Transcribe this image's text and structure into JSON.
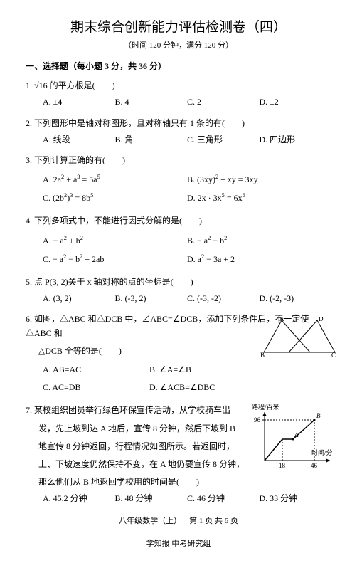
{
  "title": "期末综合创新能力评估检测卷（四）",
  "subtitle": "（时间 120 分钟，满分 120 分）",
  "section": "一、选择题（每小题 3 分，共 36 分）",
  "q1": {
    "stem_pre": "1.  ",
    "sqrt_val": "16",
    "stem_post": " 的平方根是(",
    "a": "A. ±4",
    "b": "B. 4",
    "c": "C. 2",
    "d": "D. ±2"
  },
  "q2": {
    "stem": "2.  下列图形中是轴对称图形，且对称轴只有 1 条的有(",
    "a": "A. 线段",
    "b": "B. 角",
    "c": "C. 三角形",
    "d": "D. 四边形"
  },
  "q3": {
    "stem": "3.  下列计算正确的有(",
    "a_html": "A.  2a<span class='sup'>2</span> + a<span class='sup'>3</span> = 5a<span class='sup'>5</span>",
    "b_html": "B.  (3xy)<span class='sup'>2</span> ÷ xy = 3xy",
    "c_html": "C.  (2b<span class='sup'>2</span>)<span class='sup'>3</span> = 8b<span class='sup'>5</span>",
    "d_html": "D.  2x · 3x<span class='sup'>5</span> = 6x<span class='sup'>6</span>"
  },
  "q4": {
    "stem": "4.  下列多项式中，不能进行因式分解的是(",
    "a_html": "A.  − a<span class='sup'>2</span> + b<span class='sup'>2</span>",
    "b_html": "B.  − a<span class='sup'>2</span> − b<span class='sup'>2</span>",
    "c_html": "C.  − a<span class='sup'>2</span> − b<span class='sup'>2</span> + 2ab",
    "d_html": "D.  a<span class='sup'>2</span> − 3a + 2"
  },
  "q5": {
    "stem": "5.  点 P(3, 2)关于 x 轴对称的点的坐标是(",
    "a": "A. (3, 2)",
    "b": "B. (-3, 2)",
    "c": "C. (-3, -2)",
    "d": "D. (-2, -3)"
  },
  "q6": {
    "line1": "6.  如图，△ABC 和△DCB 中，∠ABC=∠DCB，添加下列条件后，不一定使△ABC 和",
    "line2": "△DCB 全等的是(",
    "a": "A. AB=AC",
    "b": "B. ∠A=∠B",
    "c": "C. AC=DB",
    "d": "D. ∠ACB=∠DBC",
    "fig": {
      "A": "A",
      "B": "B",
      "C": "C",
      "D": "D"
    }
  },
  "q7": {
    "l1": "7.  某校组织团员举行绿色环保宣传活动，从学校骑车出",
    "l2": "发，先上坡到达 A 地后，宣传 8 分钟，然后下坡到 B",
    "l3": "地宣传 8 分钟返回，行程情况如图所示。若返回时，",
    "l4": "上、下坡速度仍然保持不变，在 A 地仍要宣传 8 分钟，",
    "l5": "那么他们从 B 地返回学校用的时间是(",
    "a": "A. 45.2 分钟",
    "b": "B. 48 分钟",
    "c": "C. 46 分钟",
    "d": "D. 33 分钟",
    "chart": {
      "ylab": "路程/百米",
      "xlab": "时间/分",
      "y_tick": "96",
      "x_t1": "18",
      "x_t2": "46",
      "pA": "A",
      "pB": "B"
    }
  },
  "footer1": "八年级数学（上） 第 1 页 共 6 页",
  "footer2": "学知报 中考研究组"
}
